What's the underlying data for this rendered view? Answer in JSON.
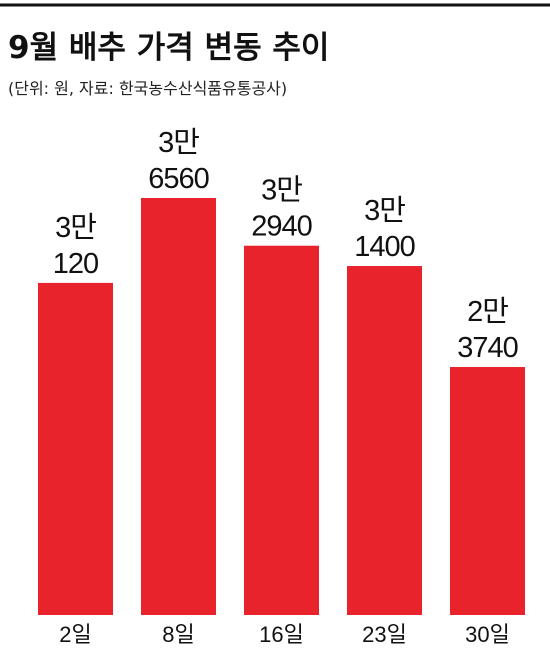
{
  "chart_data": {
    "type": "bar",
    "title": "9월 배추 가격 변동 추이",
    "subtitle": "(단위: 원, 자료: 한국농수산식품유통공사)",
    "categories": [
      "2일",
      "8일",
      "16일",
      "23일",
      "30일"
    ],
    "values": [
      30120,
      36560,
      32940,
      31400,
      23740
    ],
    "value_labels": [
      [
        "3만",
        "120"
      ],
      [
        "3만",
        "6560"
      ],
      [
        "3만",
        "2940"
      ],
      [
        "3만",
        "1400"
      ],
      [
        "2만",
        "3740"
      ]
    ],
    "color": "#e8232c"
  }
}
